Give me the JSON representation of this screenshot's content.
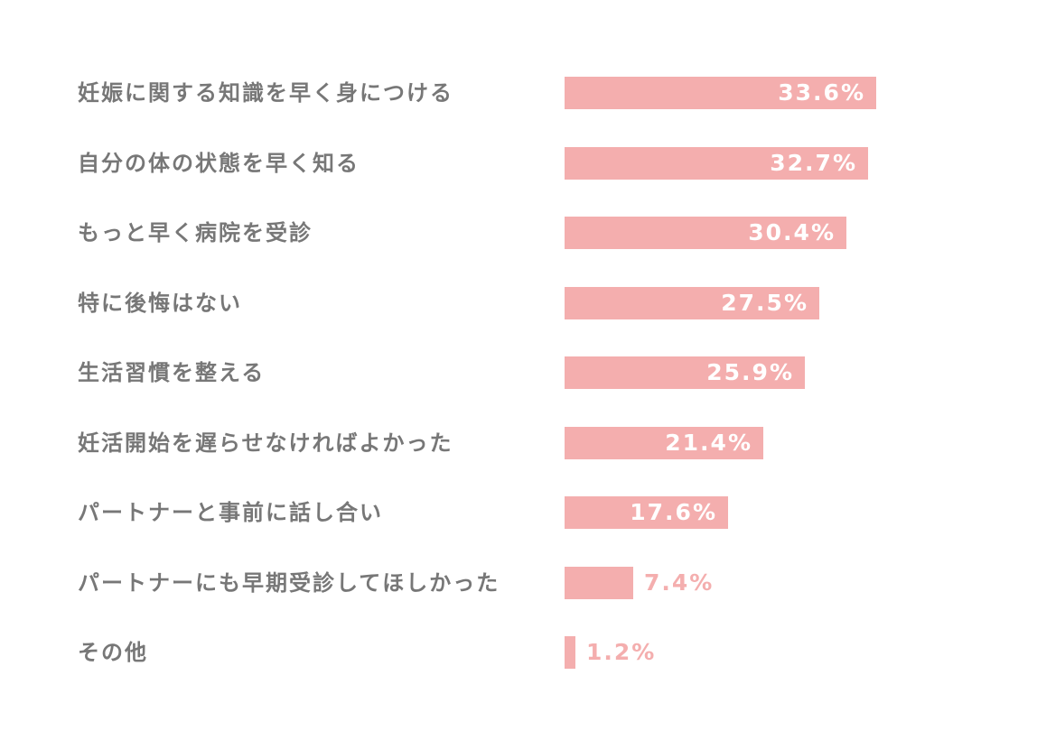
{
  "chart_data": {
    "type": "bar",
    "orientation": "horizontal",
    "categories": [
      "妊娠に関する知識を早く身につける",
      "自分の体の状態を早く知る",
      "もっと早く病院を受診",
      "特に後悔はない",
      "生活習慣を整える",
      "妊活開始を遅らせなければよかった",
      "パートナーと事前に話し合い",
      "パートナーにも早期受診してほしかった",
      "その他"
    ],
    "values": [
      33.6,
      32.7,
      30.4,
      27.5,
      25.9,
      21.4,
      17.6,
      7.4,
      1.2
    ],
    "value_labels": [
      "33.6%",
      "32.7%",
      "30.4%",
      "27.5%",
      "25.9%",
      "21.4%",
      "17.6%",
      "7.4%",
      "1.2%"
    ],
    "unit": "%",
    "xlim": [
      0,
      40
    ],
    "grid": false,
    "legend": "none"
  },
  "colors": {
    "bar": "#f4aeae",
    "label": "#777777",
    "value_inside": "#ffffff",
    "value_outside": "#f4aeae"
  }
}
